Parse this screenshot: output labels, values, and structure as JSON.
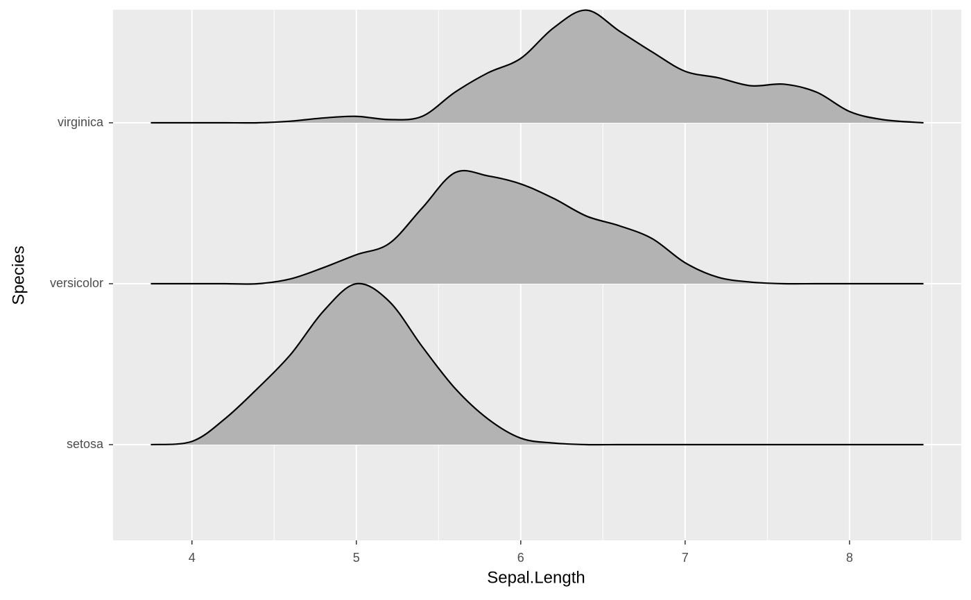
{
  "chart_data": {
    "type": "ridgeline",
    "x_label": "Sepal.Length",
    "y_label": "Species",
    "xlim": [
      3.52,
      8.68
    ],
    "xticks": [
      4,
      5,
      6,
      7,
      8
    ],
    "categories": [
      "setosa",
      "versicolor",
      "virginica"
    ],
    "fill_color": "#b3b3b3",
    "line_color": "#000000",
    "grid": true,
    "x": [
      3.75,
      4.0,
      4.2,
      4.4,
      4.6,
      4.8,
      5.0,
      5.2,
      5.4,
      5.6,
      5.8,
      6.0,
      6.2,
      6.4,
      6.6,
      6.8,
      7.0,
      7.2,
      7.4,
      7.6,
      7.8,
      8.0,
      8.2,
      8.45
    ],
    "series": [
      {
        "values": [
          0,
          0.02,
          0.16,
          0.35,
          0.56,
          0.83,
          1.0,
          0.89,
          0.61,
          0.35,
          0.16,
          0.04,
          0.01,
          0,
          0,
          0,
          0,
          0,
          0,
          0,
          0,
          0,
          0,
          0
        ]
      },
      {
        "values": [
          0,
          0,
          0,
          0,
          0.03,
          0.1,
          0.18,
          0.25,
          0.47,
          0.69,
          0.67,
          0.62,
          0.53,
          0.42,
          0.36,
          0.28,
          0.13,
          0.04,
          0.01,
          0,
          0,
          0,
          0,
          0
        ]
      },
      {
        "values": [
          0,
          0,
          0,
          0,
          0.01,
          0.03,
          0.04,
          0.02,
          0.04,
          0.19,
          0.31,
          0.4,
          0.59,
          0.7,
          0.57,
          0.44,
          0.32,
          0.28,
          0.23,
          0.24,
          0.19,
          0.07,
          0.02,
          0
        ]
      }
    ]
  }
}
